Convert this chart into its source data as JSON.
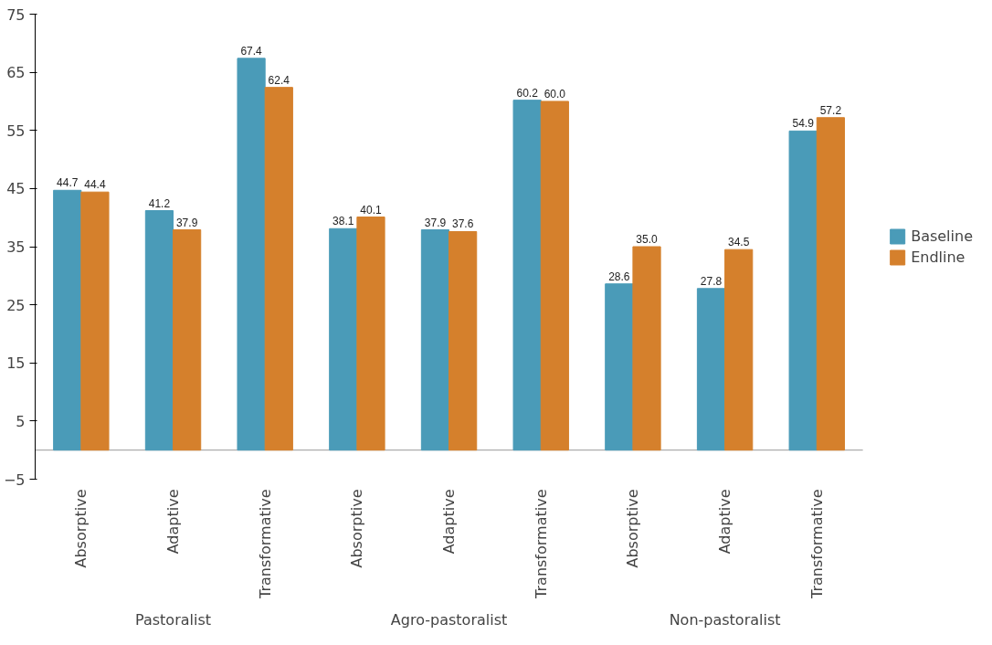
{
  "chart_data": {
    "type": "bar",
    "categories": [
      "Absorptive",
      "Adaptive",
      "Transformative",
      "Absorptive",
      "Adaptive",
      "Transformative",
      "Absorptive",
      "Adaptive",
      "Transformative"
    ],
    "series": [
      {
        "name": "Baseline",
        "color": "#4a9bb8",
        "values": [
          44.7,
          41.2,
          67.4,
          38.1,
          37.9,
          60.2,
          28.6,
          27.8,
          54.9
        ],
        "value_labels": [
          "44.7",
          "41.2",
          "67.4",
          "38.1",
          "37.9",
          "60.2",
          "28.6",
          "27.8",
          "54.9"
        ]
      },
      {
        "name": "Endline",
        "color": "#d5802c",
        "values": [
          44.4,
          37.9,
          62.4,
          40.1,
          37.6,
          60.0,
          35.0,
          34.5,
          57.2
        ],
        "value_labels": [
          "44.4",
          "37.9",
          "62.4",
          "40.1",
          "37.6",
          "60.0",
          "35.0",
          "34.5",
          "57.2"
        ]
      }
    ],
    "annotations": [
      "Pastoralist",
      "Agro-pastoralist",
      "Non-pastoralist"
    ],
    "ylim": [
      -5,
      75
    ],
    "yticks": [
      -5,
      5,
      15,
      25,
      35,
      45,
      55,
      65,
      75
    ],
    "legend": "right"
  }
}
